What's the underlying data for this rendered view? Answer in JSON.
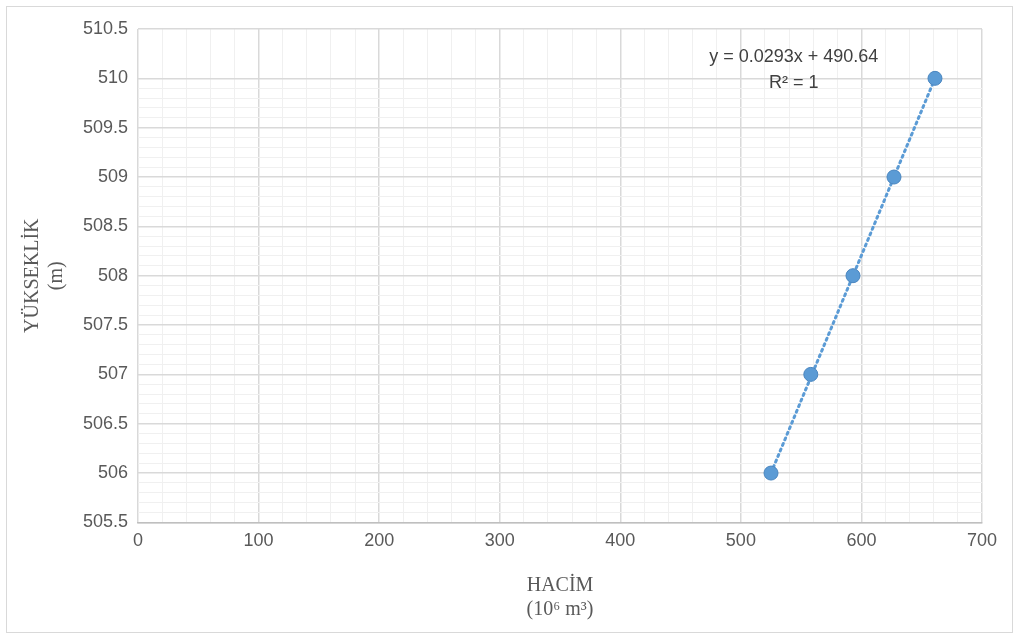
{
  "chart_data": {
    "type": "scatter",
    "xlabel": "HACİM\n(10⁶ m³)",
    "ylabel": "YÜKSEKLİK\n(m)",
    "series": [
      {
        "color": "#5b9bd5",
        "x": [
          525,
          558,
          593,
          627,
          661
        ],
        "values": [
          506,
          507,
          508,
          509,
          510
        ],
        "marker": "circle"
      },
      {
        "type": "line",
        "color": "#5b9bd5",
        "x": [
          525,
          661
        ],
        "values": [
          506,
          510
        ],
        "marker": "none",
        "line_style": "dotted"
      }
    ],
    "annotations": [
      "y = 0.0293x + 490.64",
      "R² = 1"
    ],
    "xlim": [
      0,
      700
    ],
    "xticks": [
      0,
      {
        "value": 20,
        "label": null
      },
      {
        "value": 40,
        "label": null
      },
      {
        "value": 60,
        "label": null
      },
      {
        "value": 80,
        "label": null
      },
      100,
      {
        "value": 120,
        "label": null
      },
      {
        "value": 140,
        "label": null
      },
      {
        "value": 160,
        "label": null
      },
      {
        "value": 180,
        "label": null
      },
      200,
      {
        "value": 220,
        "label": null
      },
      {
        "value": 240,
        "label": null
      },
      {
        "value": 260,
        "label": null
      },
      {
        "value": 280,
        "label": null
      },
      300,
      {
        "value": 320,
        "label": null
      },
      {
        "value": 340,
        "label": null
      },
      {
        "value": 360,
        "label": null
      },
      {
        "value": 380,
        "label": null
      },
      400,
      {
        "value": 420,
        "label": null
      },
      {
        "value": 440,
        "label": null
      },
      {
        "value": 460,
        "label": null
      },
      {
        "value": 480,
        "label": null
      },
      500,
      {
        "value": 520,
        "label": null
      },
      {
        "value": 540,
        "label": null
      },
      {
        "value": 560,
        "label": null
      },
      {
        "value": 580,
        "label": null
      },
      600,
      {
        "value": 620,
        "label": null
      },
      {
        "value": 640,
        "label": null
      },
      {
        "value": 660,
        "label": null
      },
      {
        "value": 680,
        "label": null
      },
      700
    ],
    "ylim": [
      505.5,
      510.5
    ],
    "yticks": [
      505.5,
      {
        "value": 505.6,
        "label": null
      },
      {
        "value": 505.7,
        "label": null
      },
      {
        "value": 505.8,
        "label": null
      },
      {
        "value": 505.9,
        "label": null
      },
      506,
      {
        "value": 506.1,
        "label": null
      },
      {
        "value": 506.2,
        "label": null
      },
      {
        "value": 506.3,
        "label": null
      },
      {
        "value": 506.4,
        "label": null
      },
      506.5,
      {
        "value": 506.6,
        "label": null
      },
      {
        "value": 506.7,
        "label": null
      },
      {
        "value": 506.8,
        "label": null
      },
      {
        "value": 506.9,
        "label": null
      },
      507,
      {
        "value": 507.1,
        "label": null
      },
      {
        "value": 507.2,
        "label": null
      },
      {
        "value": 507.3,
        "label": null
      },
      {
        "value": 507.4,
        "label": null
      },
      507.5,
      {
        "value": 507.6,
        "label": null
      },
      {
        "value": 507.7,
        "label": null
      },
      {
        "value": 507.8,
        "label": null
      },
      {
        "value": 507.9,
        "label": null
      },
      508,
      {
        "value": 508.1,
        "label": null
      },
      {
        "value": 508.2,
        "label": null
      },
      {
        "value": 508.3,
        "label": null
      },
      {
        "value": 508.4,
        "label": null
      },
      508.5,
      {
        "value": 508.6,
        "label": null
      },
      {
        "value": 508.7,
        "label": null
      },
      {
        "value": 508.8,
        "label": null
      },
      {
        "value": 508.9,
        "label": null
      },
      509,
      {
        "value": 509.1,
        "label": null
      },
      {
        "value": 509.2,
        "label": null
      },
      {
        "value": 509.3,
        "label": null
      },
      {
        "value": 509.4,
        "label": null
      },
      509.5,
      {
        "value": 509.6,
        "label": null
      },
      {
        "value": 509.7,
        "label": null
      },
      {
        "value": 509.8,
        "label": null
      },
      {
        "value": 509.9,
        "label": null
      },
      510,
      510.5
    ],
    "grid": true,
    "legend": false
  }
}
